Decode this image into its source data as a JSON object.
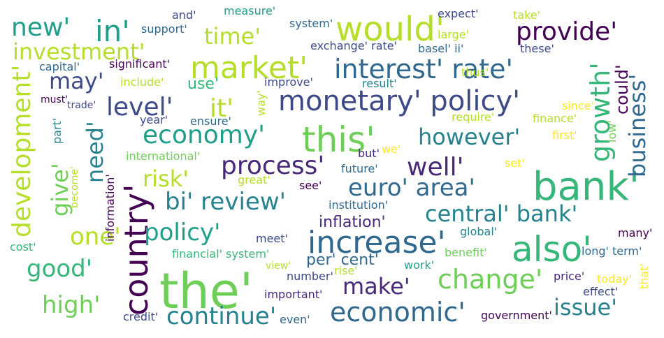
{
  "colors": {
    "background": "#ffffff",
    "palette": [
      "#440154",
      "#482878",
      "#3e4989",
      "#31688e",
      "#26828e",
      "#1f9e89",
      "#35b779",
      "#6ece58",
      "#b5de2b",
      "#fde725"
    ]
  },
  "words": [
    {
      "text": "the'",
      "color": "#6ece58"
    },
    {
      "text": "bank'",
      "color": "#35b779"
    },
    {
      "text": "would'",
      "color": "#b5de2b"
    },
    {
      "text": "this'",
      "color": "#6ece58"
    },
    {
      "text": "also'",
      "color": "#35b779"
    },
    {
      "text": "country'",
      "color": "#440154"
    },
    {
      "text": "increase'",
      "color": "#31688e"
    },
    {
      "text": "market'",
      "color": "#b5de2b"
    },
    {
      "text": "monetary' policy'",
      "color": "#3e4989"
    },
    {
      "text": "interest' rate'",
      "color": "#31688e"
    },
    {
      "text": "economy'",
      "color": "#1f9e89"
    },
    {
      "text": "economic'",
      "color": "#31688e"
    },
    {
      "text": "change'",
      "color": "#6ece58"
    },
    {
      "text": "growth'",
      "color": "#35b779"
    },
    {
      "text": "development'",
      "color": "#b5de2b"
    },
    {
      "text": "investment'",
      "color": "#b5de2b"
    },
    {
      "text": "provide'",
      "color": "#440154"
    },
    {
      "text": "in'",
      "color": "#1f9e89"
    },
    {
      "text": "new'",
      "color": "#1f9e89"
    },
    {
      "text": "time'",
      "color": "#b5de2b"
    },
    {
      "text": "level'",
      "color": "#3e4989"
    },
    {
      "text": "it'",
      "color": "#b5de2b"
    },
    {
      "text": "however'",
      "color": "#26828e"
    },
    {
      "text": "business'",
      "color": "#31688e"
    },
    {
      "text": "process'",
      "color": "#482878"
    },
    {
      "text": "well'",
      "color": "#482878"
    },
    {
      "text": "risk'",
      "color": "#b5de2b"
    },
    {
      "text": "euro' area'",
      "color": "#31688e"
    },
    {
      "text": "bi' review'",
      "color": "#26828e"
    },
    {
      "text": "central' bank'",
      "color": "#26828e"
    },
    {
      "text": "policy'",
      "color": "#1f9e89"
    },
    {
      "text": "one'",
      "color": "#b5de2b"
    },
    {
      "text": "good'",
      "color": "#35b779"
    },
    {
      "text": "high'",
      "color": "#6ece58"
    },
    {
      "text": "make'",
      "color": "#482878"
    },
    {
      "text": "continue'",
      "color": "#26828e"
    },
    {
      "text": "issue'",
      "color": "#26828e"
    },
    {
      "text": "need'",
      "color": "#26828e"
    },
    {
      "text": "give'",
      "color": "#6ece58"
    },
    {
      "text": "may'",
      "color": "#3e4989"
    },
    {
      "text": "inflation'",
      "color": "#482878"
    },
    {
      "text": "per' cent'",
      "color": "#31688e"
    },
    {
      "text": "could'",
      "color": "#440154"
    },
    {
      "text": "use'",
      "color": "#35b779"
    },
    {
      "text": "and'",
      "color": "#3e4989"
    },
    {
      "text": "measure'",
      "color": "#1f9e89"
    },
    {
      "text": "expect'",
      "color": "#3e4989"
    },
    {
      "text": "take'",
      "color": "#b5de2b"
    },
    {
      "text": "support'",
      "color": "#31688e"
    },
    {
      "text": "system'",
      "color": "#31688e"
    },
    {
      "text": "large'",
      "color": "#b5de2b"
    },
    {
      "text": "exchange' rate'",
      "color": "#3e4989"
    },
    {
      "text": "basel' ii'",
      "color": "#31688e"
    },
    {
      "text": "these'",
      "color": "#3e4989"
    },
    {
      "text": "capital'",
      "color": "#31688e"
    },
    {
      "text": "significant'",
      "color": "#440154"
    },
    {
      "text": "include'",
      "color": "#b5de2b"
    },
    {
      "text": "improve'",
      "color": "#3e4989"
    },
    {
      "text": "result'",
      "color": "#26828e"
    },
    {
      "text": "thus'",
      "color": "#b5de2b"
    },
    {
      "text": "must'",
      "color": "#440154"
    },
    {
      "text": "trade'",
      "color": "#3e4989"
    },
    {
      "text": "way'",
      "color": "#b5de2b"
    },
    {
      "text": "require'",
      "color": "#b5de2b"
    },
    {
      "text": "since'",
      "color": "#fde725"
    },
    {
      "text": "finance'",
      "color": "#b5de2b"
    },
    {
      "text": "low'",
      "color": "#6ece58"
    },
    {
      "text": "first'",
      "color": "#fde725"
    },
    {
      "text": "year'",
      "color": "#3e4989"
    },
    {
      "text": "ensure'",
      "color": "#31688e"
    },
    {
      "text": "part'",
      "color": "#26828e"
    },
    {
      "text": "international'",
      "color": "#6ece58"
    },
    {
      "text": "but'",
      "color": "#482878"
    },
    {
      "text": "we'",
      "color": "#fde725"
    },
    {
      "text": "future'",
      "color": "#31688e"
    },
    {
      "text": "set'",
      "color": "#fde725"
    },
    {
      "text": "great'",
      "color": "#b5de2b"
    },
    {
      "text": "see'",
      "color": "#440154"
    },
    {
      "text": "become'",
      "color": "#b5de2b"
    },
    {
      "text": "information'",
      "color": "#440154"
    },
    {
      "text": "institution'",
      "color": "#31688e"
    },
    {
      "text": "global'",
      "color": "#26828e"
    },
    {
      "text": "many'",
      "color": "#440154"
    },
    {
      "text": "meet'",
      "color": "#3e4989"
    },
    {
      "text": "cost'",
      "color": "#35b779"
    },
    {
      "text": "financial' system'",
      "color": "#35b779"
    },
    {
      "text": "benefit'",
      "color": "#6ece58"
    },
    {
      "text": "long' term'",
      "color": "#31688e"
    },
    {
      "text": "view'",
      "color": "#b5de2b"
    },
    {
      "text": "rise'",
      "color": "#b5de2b"
    },
    {
      "text": "work'",
      "color": "#1f9e89"
    },
    {
      "text": "number'",
      "color": "#3e4989"
    },
    {
      "text": "price'",
      "color": "#482878"
    },
    {
      "text": "today'",
      "color": "#fde725"
    },
    {
      "text": "that'",
      "color": "#fde725"
    },
    {
      "text": "effect'",
      "color": "#3e4989"
    },
    {
      "text": "important'",
      "color": "#482878"
    },
    {
      "text": "credit'",
      "color": "#3e4989"
    },
    {
      "text": "even'",
      "color": "#31688e"
    },
    {
      "text": "government'",
      "color": "#440154"
    }
  ]
}
